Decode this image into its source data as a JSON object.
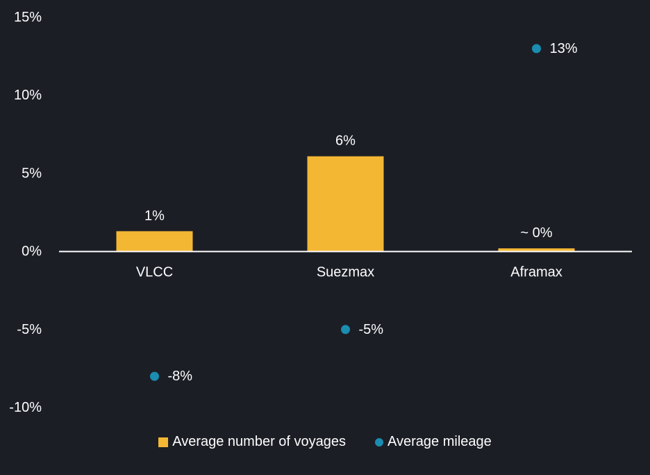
{
  "chart_data": {
    "type": "bar",
    "categories": [
      "VLCC",
      "Suezmax",
      "Aframax"
    ],
    "series": [
      {
        "name": "Average number of voyages",
        "kind": "bar",
        "values": [
          1.3,
          6.1,
          0.2
        ],
        "labels": [
          "1%",
          "6%",
          "~ 0%"
        ]
      },
      {
        "name": "Average mileage",
        "kind": "scatter",
        "values": [
          -8,
          -5,
          13
        ],
        "labels": [
          "-8%",
          "-5%",
          "13%"
        ]
      }
    ],
    "yticks": [
      "15%",
      "10%",
      "5%",
      "0%",
      "-5%",
      "-10%"
    ],
    "ytick_values": [
      15,
      10,
      5,
      0,
      -5,
      -10
    ],
    "ylim": [
      -10,
      15
    ],
    "grid": false,
    "legend_position": "bottom",
    "title": "",
    "xlabel": "",
    "ylabel": ""
  },
  "colors": {
    "background": "#1c1e26",
    "bar": "#f3b734",
    "dot": "#1a8db0",
    "text": "#ffffff",
    "axis": "#ffffff"
  }
}
